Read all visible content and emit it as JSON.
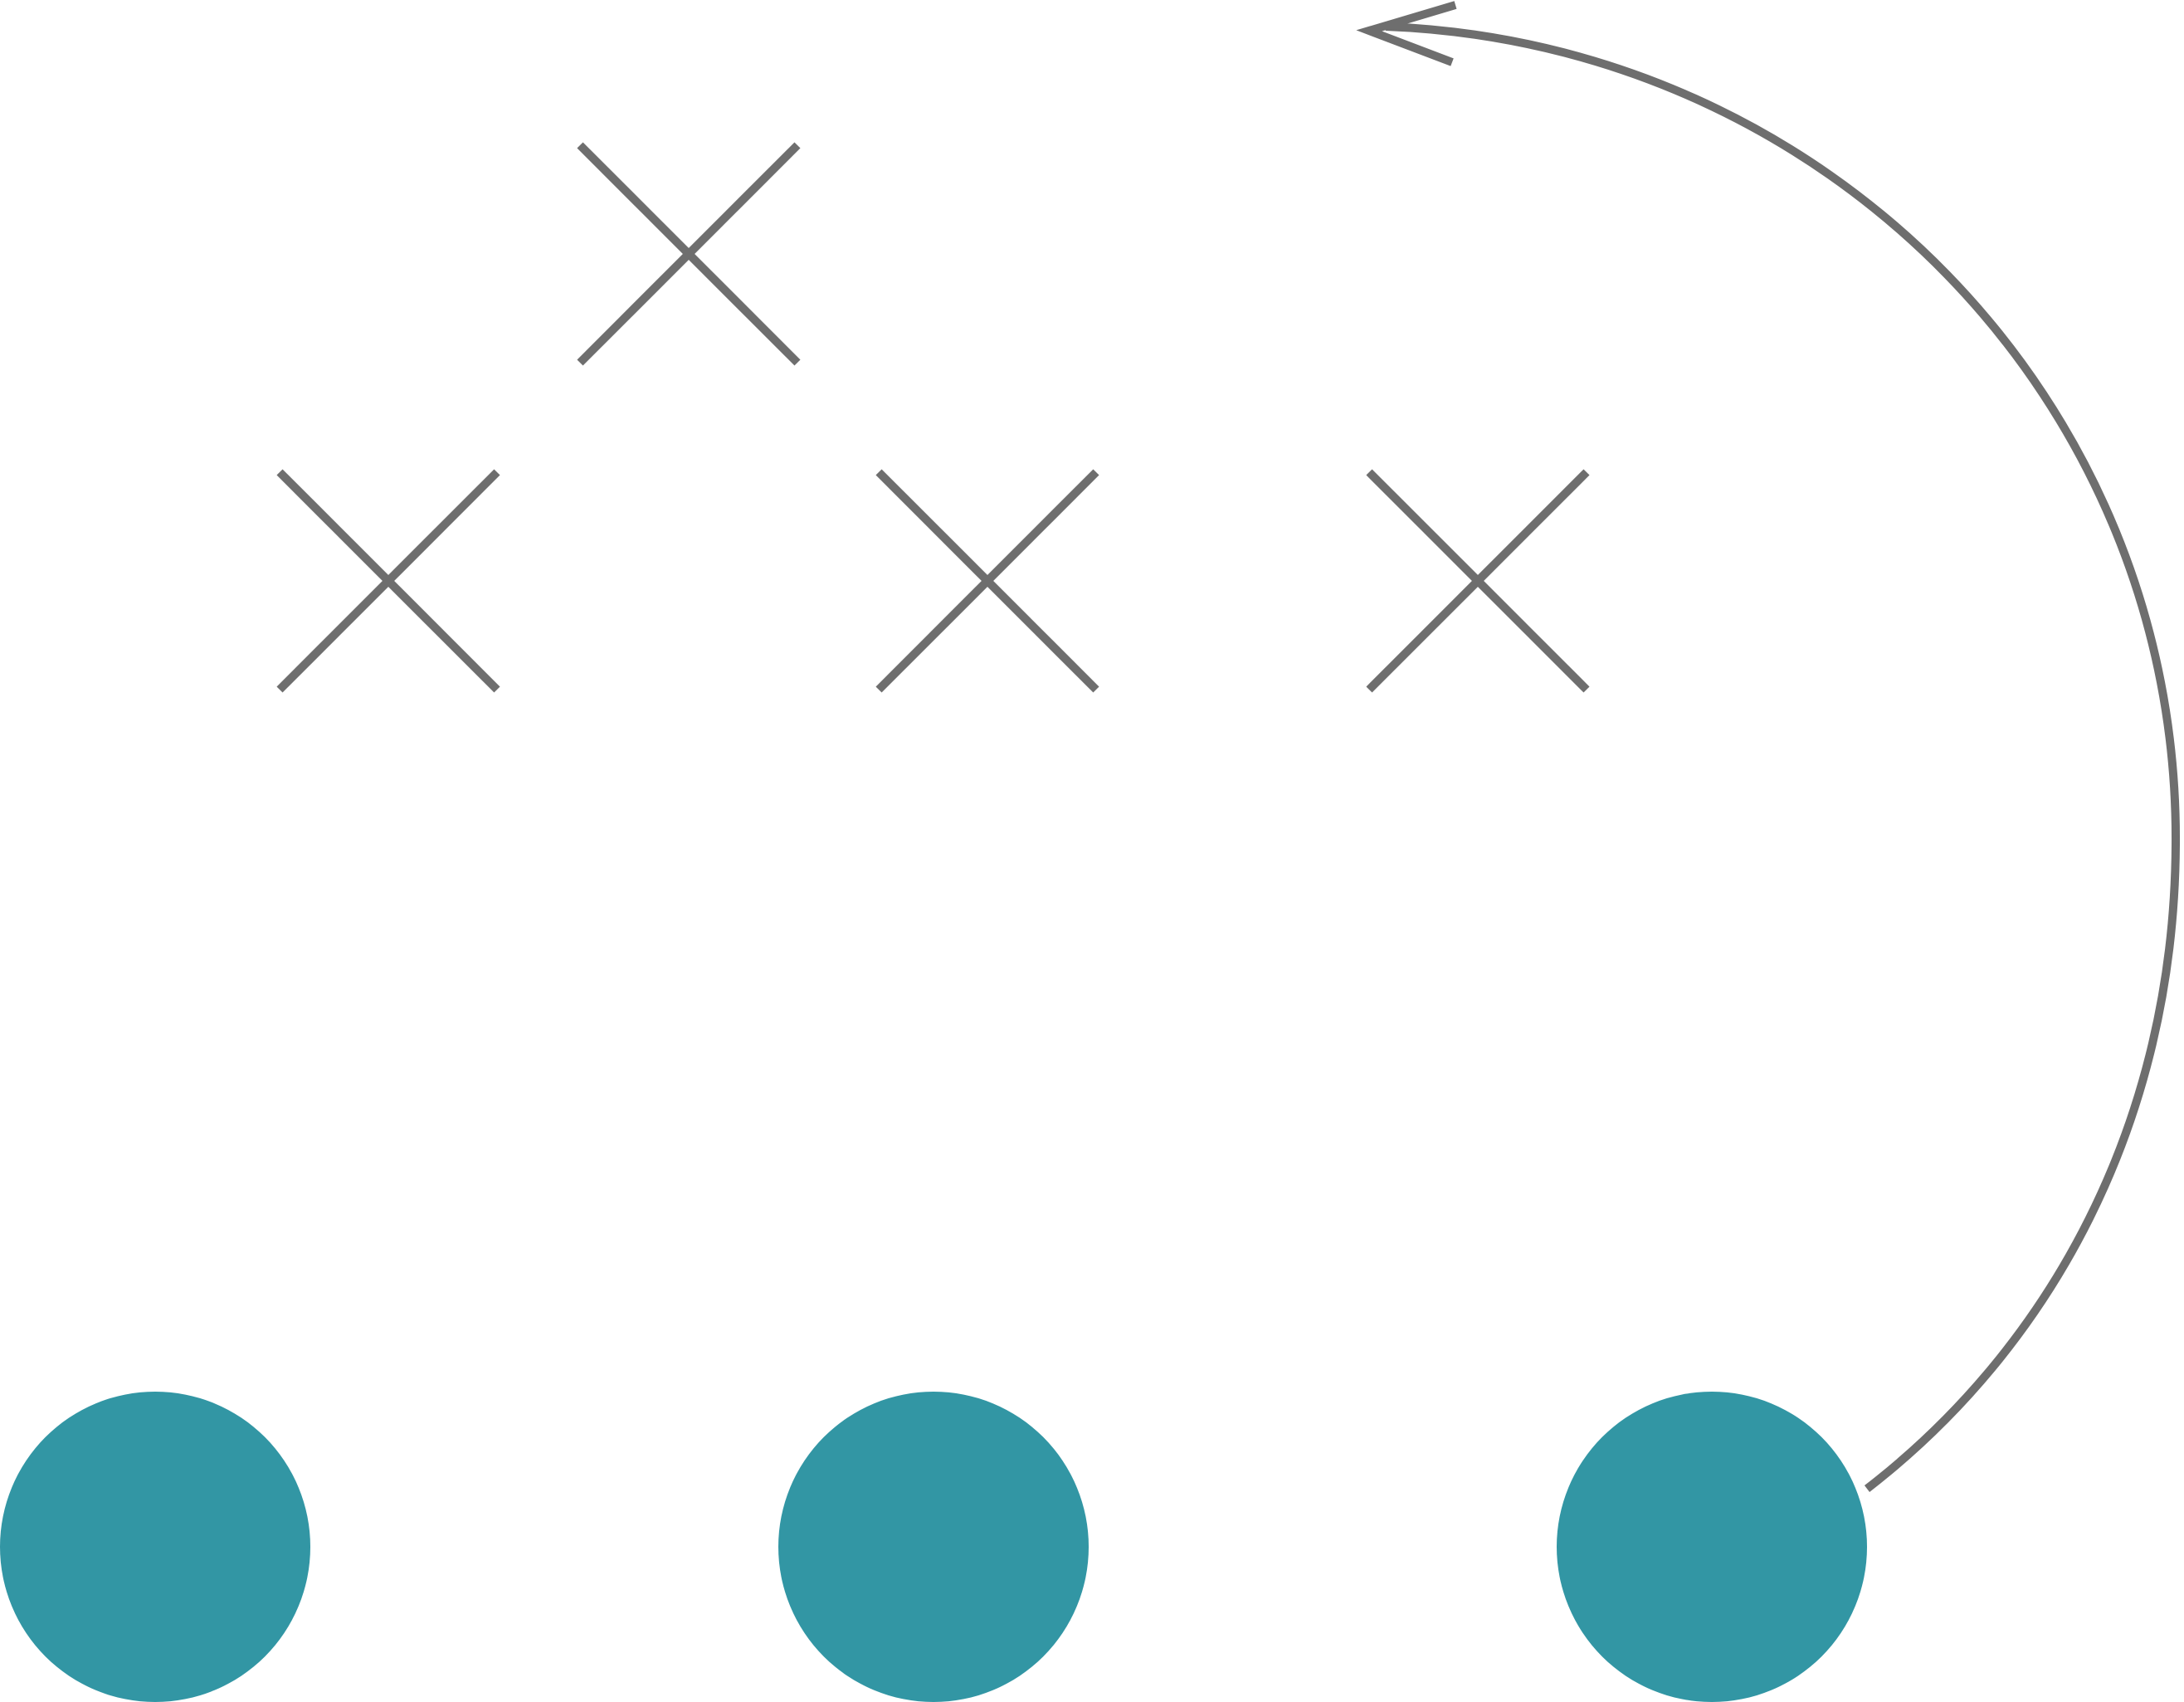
{
  "diagram": {
    "background": "#ffffff",
    "stroke_color": "#6e6e6e",
    "fill_color": "#3296a4",
    "markers": [
      {
        "shape": "cross"
      },
      {
        "shape": "cross"
      },
      {
        "shape": "cross"
      },
      {
        "shape": "cross"
      }
    ],
    "players": [
      {
        "shape": "circle"
      },
      {
        "shape": "circle"
      },
      {
        "shape": "circle"
      }
    ],
    "arrow": {
      "from": "player-3",
      "direction": "counter-clockwise"
    }
  }
}
